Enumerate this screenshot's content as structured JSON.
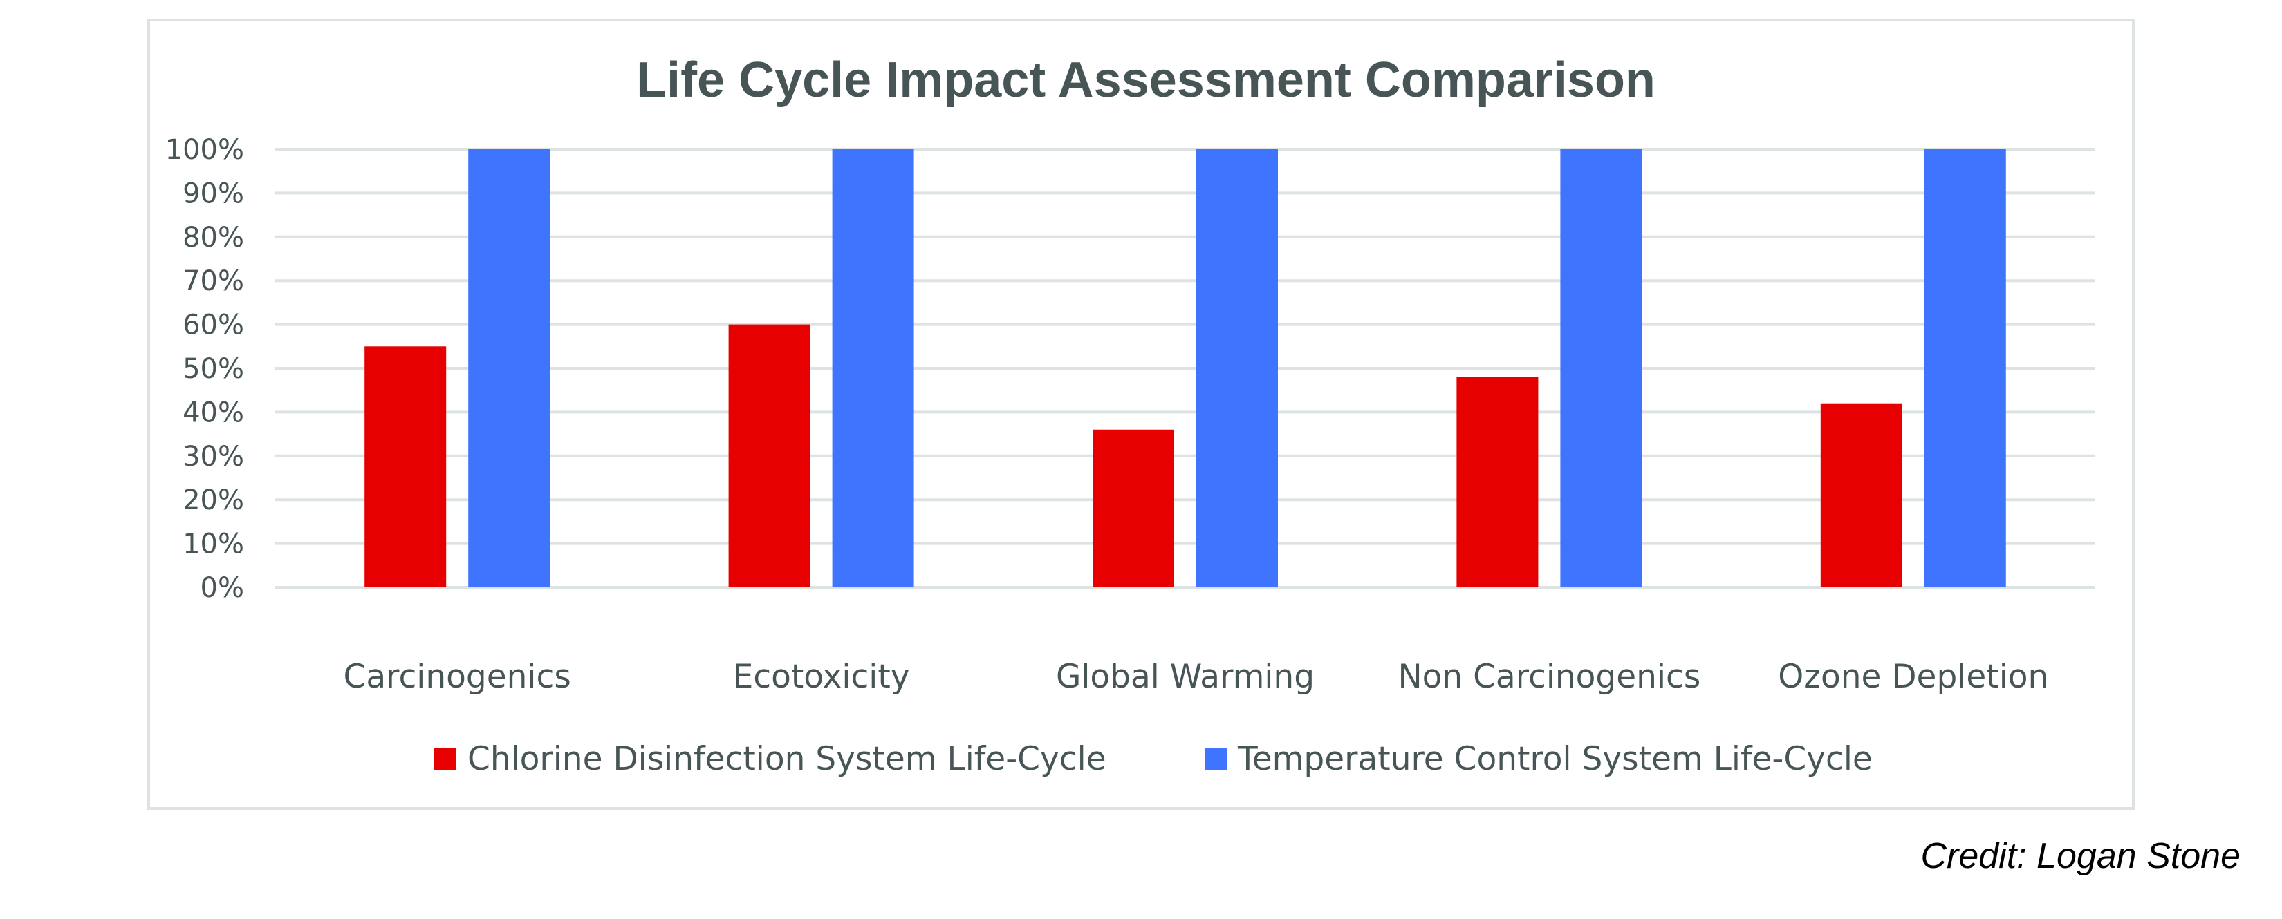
{
  "chart_data": {
    "type": "bar",
    "title": "Life Cycle Impact Assessment Comparison",
    "xlabel": "",
    "ylabel": "",
    "categories": [
      "Carcinogenics",
      "Ecotoxicity",
      "Global Warming",
      "Non Carcinogenics",
      "Ozone Depletion"
    ],
    "series": [
      {
        "name": "Chlorine Disinfection System Life-Cycle",
        "color": "#E60000",
        "values": [
          55,
          60,
          36,
          48,
          42
        ]
      },
      {
        "name": "Temperature Control System Life-Cycle",
        "color": "#3F74FF",
        "values": [
          100,
          100,
          100,
          100,
          100
        ]
      }
    ],
    "ylim": [
      0,
      100
    ],
    "yticks": [
      0,
      10,
      20,
      30,
      40,
      50,
      60,
      70,
      80,
      90,
      100
    ],
    "ytick_labels": [
      "0%",
      "10%",
      "20%",
      "30%",
      "40%",
      "50%",
      "60%",
      "70%",
      "80%",
      "90%",
      "100%"
    ],
    "y_unit": "percent",
    "grid": true,
    "legend_position": "bottom-center"
  },
  "credit": "Credit: Logan Stone",
  "colors": {
    "text": "#485556",
    "gridline": "#DDE3E2",
    "frame": "#DDE3E2"
  }
}
